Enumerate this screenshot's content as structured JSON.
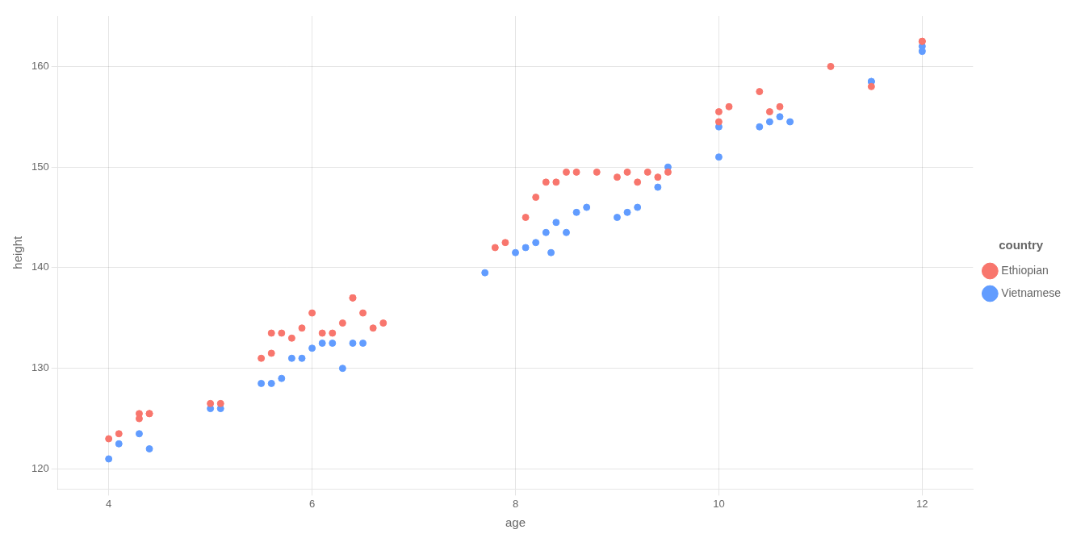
{
  "chart_data": {
    "type": "scatter",
    "xlabel": "age",
    "ylabel": "height",
    "xlim": [
      3.5,
      12.5
    ],
    "ylim": [
      118,
      165
    ],
    "xticks": [
      4,
      6,
      8,
      10,
      12
    ],
    "yticks": [
      120,
      130,
      140,
      150,
      160
    ],
    "grid": true,
    "legend": "right",
    "legend_title": "country",
    "series": [
      {
        "name": "Ethiopian",
        "color": "#F8766D",
        "x": [
          4.0,
          4.1,
          4.3,
          4.3,
          4.4,
          4.4,
          5.0,
          5.1,
          5.5,
          5.6,
          5.6,
          5.7,
          5.8,
          5.9,
          6.0,
          6.1,
          6.2,
          6.3,
          6.4,
          6.4,
          6.5,
          6.6,
          6.7,
          7.8,
          7.9,
          8.1,
          8.2,
          8.3,
          8.4,
          8.5,
          8.6,
          8.8,
          9.0,
          9.1,
          9.2,
          9.3,
          9.4,
          9.5,
          10.0,
          10.0,
          10.1,
          10.4,
          10.5,
          10.6,
          11.1,
          11.5,
          12.0,
          12.0
        ],
        "values": [
          123.0,
          123.5,
          125.5,
          125.0,
          125.5,
          125.5,
          126.5,
          126.5,
          131.0,
          131.5,
          133.5,
          133.5,
          133.0,
          134.0,
          135.5,
          133.5,
          133.5,
          134.5,
          137.0,
          137.0,
          135.5,
          134.0,
          134.5,
          142.0,
          142.5,
          145.0,
          147.0,
          148.5,
          148.5,
          149.5,
          149.5,
          149.5,
          149.0,
          149.5,
          148.5,
          149.5,
          149.0,
          149.5,
          155.5,
          154.5,
          156.0,
          157.5,
          155.5,
          156.0,
          160.0,
          158.0,
          162.5,
          162.5
        ]
      },
      {
        "name": "Vietnamese",
        "color": "#619CFF",
        "x": [
          4.0,
          4.1,
          4.3,
          4.4,
          5.0,
          5.1,
          5.5,
          5.6,
          5.7,
          5.8,
          5.9,
          6.0,
          6.1,
          6.2,
          6.3,
          6.4,
          6.5,
          7.7,
          8.0,
          8.1,
          8.2,
          8.3,
          8.35,
          8.4,
          8.5,
          8.6,
          8.7,
          9.0,
          9.1,
          9.2,
          9.4,
          9.5,
          10.0,
          10.0,
          10.4,
          10.5,
          10.6,
          10.7,
          11.5,
          11.5,
          12.0,
          12.0
        ],
        "values": [
          121.0,
          122.5,
          123.5,
          122.0,
          126.0,
          126.0,
          128.5,
          128.5,
          129.0,
          131.0,
          131.0,
          132.0,
          132.5,
          132.5,
          130.0,
          132.5,
          132.5,
          139.5,
          141.5,
          142.0,
          142.5,
          143.5,
          141.5,
          144.5,
          143.5,
          145.5,
          146.0,
          145.0,
          145.5,
          146.0,
          148.0,
          150.0,
          151.0,
          154.0,
          154.0,
          154.5,
          155.0,
          154.5,
          158.5,
          158.5,
          162.0,
          161.5
        ]
      }
    ]
  }
}
